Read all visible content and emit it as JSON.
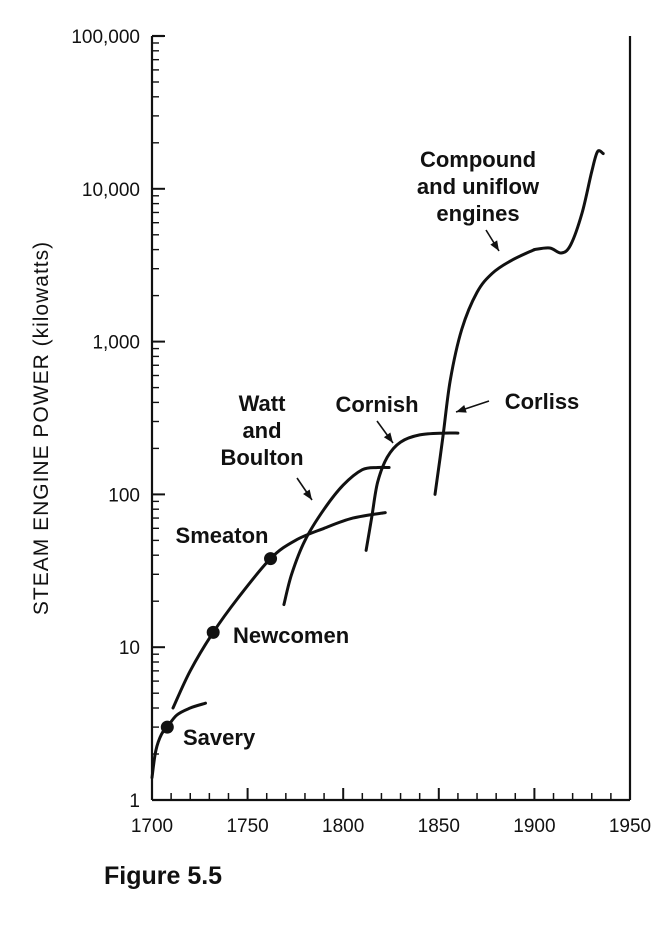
{
  "chart_data": {
    "type": "line",
    "title": "",
    "xlabel": "",
    "ylabel": "STEAM ENGINE POWER (kilowatts)",
    "xlim": [
      1700,
      1950
    ],
    "ylim": [
      1,
      100000
    ],
    "y_scale": "log",
    "x_ticks": [
      "1700",
      "1750",
      "1800",
      "1850",
      "1900",
      "1950"
    ],
    "y_ticks": [
      "1",
      "10",
      "100",
      "1,000",
      "10,000",
      "100,000"
    ],
    "grid": false,
    "series": [
      {
        "name": "Savery",
        "points": [
          [
            1700,
            1.4
          ],
          [
            1702,
            2.1
          ],
          [
            1705,
            2.7
          ],
          [
            1708,
            3.0
          ],
          [
            1713,
            3.6
          ],
          [
            1720,
            4.0
          ],
          [
            1728,
            4.3
          ]
        ]
      },
      {
        "name": "Newcomen",
        "points": [
          [
            1711,
            4.0
          ],
          [
            1720,
            7.0
          ],
          [
            1732,
            12.5
          ],
          [
            1745,
            21
          ],
          [
            1762,
            38
          ],
          [
            1775,
            50
          ],
          [
            1790,
            60
          ],
          [
            1805,
            70
          ],
          [
            1822,
            76
          ]
        ]
      },
      {
        "name": "Watt and Boulton",
        "points": [
          [
            1769,
            19
          ],
          [
            1773,
            30
          ],
          [
            1780,
            50
          ],
          [
            1790,
            80
          ],
          [
            1800,
            115
          ],
          [
            1810,
            145
          ],
          [
            1818,
            150
          ],
          [
            1824,
            150
          ]
        ]
      },
      {
        "name": "Cornish",
        "points": [
          [
            1812,
            43
          ],
          [
            1815,
            72
          ],
          [
            1818,
            120
          ],
          [
            1823,
            175
          ],
          [
            1830,
            220
          ],
          [
            1840,
            245
          ],
          [
            1853,
            252
          ],
          [
            1860,
            252
          ]
        ]
      },
      {
        "name": "Corliss",
        "points": [
          [
            1848,
            100
          ],
          [
            1852,
            230
          ],
          [
            1856,
            560
          ],
          [
            1862,
            1200
          ],
          [
            1870,
            2100
          ],
          [
            1878,
            2800
          ],
          [
            1888,
            3400
          ],
          [
            1900,
            4000
          ]
        ]
      },
      {
        "name": "Compound and uniflow engines",
        "points": [
          [
            1900,
            4000
          ],
          [
            1908,
            4100
          ],
          [
            1914,
            3800
          ],
          [
            1919,
            4300
          ],
          [
            1925,
            7000
          ],
          [
            1930,
            13000
          ],
          [
            1933,
            17500
          ],
          [
            1936,
            17000
          ]
        ]
      }
    ],
    "markers": [
      {
        "label": "Savery",
        "x": 1708,
        "y": 3.0
      },
      {
        "label": "Newcomen",
        "x": 1732,
        "y": 12.5
      },
      {
        "label": "Smeaton",
        "x": 1762,
        "y": 38
      }
    ],
    "annotations": [
      {
        "lines": [
          "Savery"
        ]
      },
      {
        "lines": [
          "Newcomen"
        ]
      },
      {
        "lines": [
          "Smeaton"
        ]
      },
      {
        "lines": [
          "Watt",
          "and",
          "Boulton"
        ]
      },
      {
        "lines": [
          "Cornish"
        ]
      },
      {
        "lines": [
          "Corliss"
        ]
      },
      {
        "lines": [
          "Compound",
          "and uniflow",
          "engines"
        ]
      }
    ]
  },
  "caption": "Figure 5.5"
}
